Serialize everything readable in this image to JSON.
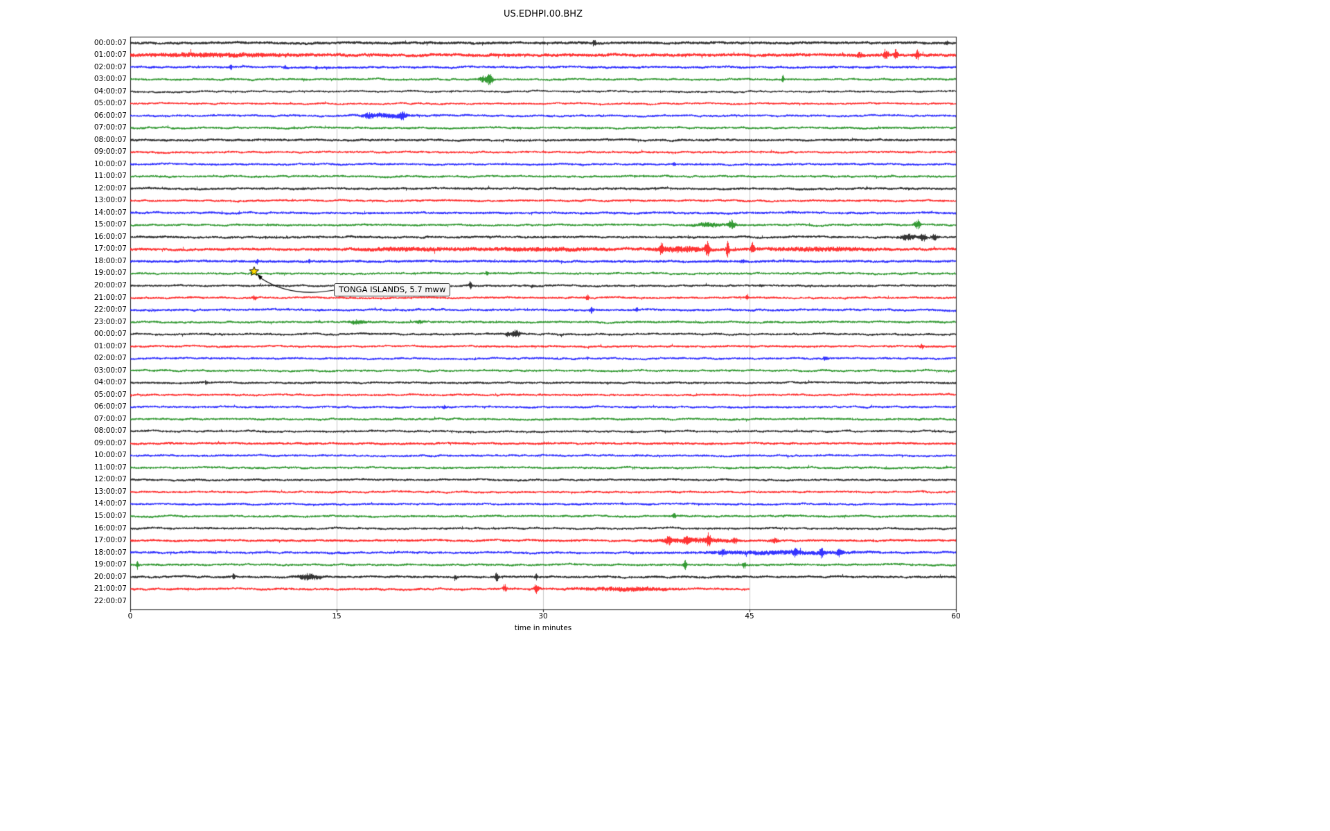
{
  "figure": {
    "title": "US.EDHPI.00.BHZ",
    "xlabel": "time in minutes"
  },
  "annotation": {
    "text": "TONGA ISLANDS, 5.7 mww"
  },
  "chart_data": {
    "type": "line",
    "subtype": "helicorder-dayplot",
    "title": "US.EDHPI.00.BHZ",
    "xlabel": "time in minutes",
    "x_ticks": [
      0,
      15,
      30,
      45,
      60
    ],
    "grid_x": [
      15,
      30,
      45
    ],
    "x_max": 60,
    "minutes_per_line": 60,
    "color_cycle": [
      "#000000",
      "#ff0000",
      "#0000ff",
      "#008000"
    ],
    "grid_color": "#c8c8c8",
    "annotation": {
      "text": "TONGA ISLANDS, 5.7 mww",
      "row": 19,
      "t_minutes": 9.0,
      "marker": "star",
      "marker_color": "#ffdd00",
      "marker_edge": "#000000"
    },
    "events_format": "[minute, amplitude_px, width_minutes]",
    "rows": [
      {
        "label": "00:00:07",
        "noise": 1.3,
        "events": [
          [
            33.7,
            6,
            0.12
          ],
          [
            59.3,
            3,
            0.12
          ]
        ]
      },
      {
        "label": "01:00:07",
        "noise": 1.5,
        "events": [
          [
            6,
            1.5,
            8
          ],
          [
            53.0,
            3,
            0.3
          ],
          [
            54.9,
            8,
            0.25
          ],
          [
            55.6,
            9,
            0.2
          ],
          [
            57.2,
            6,
            0.25
          ]
        ]
      },
      {
        "label": "02:00:07",
        "noise": 1.1,
        "events": [
          [
            7.3,
            3,
            0.15
          ],
          [
            11.2,
            3,
            0.15
          ],
          [
            13.5,
            2,
            0.12
          ]
        ]
      },
      {
        "label": "03:00:07",
        "events": [
          [
            25.6,
            4,
            0.4
          ],
          [
            26.1,
            8,
            0.35
          ],
          [
            47.4,
            6,
            0.12
          ]
        ]
      },
      {
        "label": "04:00:07",
        "noise": 0.9,
        "events": []
      },
      {
        "label": "05:00:07",
        "noise": 0.9,
        "events": []
      },
      {
        "label": "06:00:07",
        "events": [
          [
            18.5,
            2.5,
            2.5
          ],
          [
            17.3,
            3,
            0.4
          ],
          [
            19.8,
            5,
            0.35
          ]
        ]
      },
      {
        "label": "07:00:07",
        "events": []
      },
      {
        "label": "08:00:07",
        "noise": 1.1,
        "events": []
      },
      {
        "label": "09:00:07",
        "events": []
      },
      {
        "label": "10:00:07",
        "events": [
          [
            39.5,
            2,
            0.2
          ]
        ]
      },
      {
        "label": "11:00:07",
        "events": []
      },
      {
        "label": "12:00:07",
        "noise": 1.1,
        "events": []
      },
      {
        "label": "13:00:07",
        "events": []
      },
      {
        "label": "14:00:07",
        "noise": 1.1,
        "events": []
      },
      {
        "label": "15:00:07",
        "events": [
          [
            42.0,
            2.5,
            1.5
          ],
          [
            43.7,
            6,
            0.4
          ],
          [
            57.2,
            6,
            0.35
          ]
        ]
      },
      {
        "label": "16:00:07",
        "noise": 1.1,
        "events": [
          [
            56.5,
            4,
            0.8
          ],
          [
            57.6,
            5,
            0.4
          ],
          [
            58.4,
            4,
            0.35
          ]
        ]
      },
      {
        "label": "17:00:07",
        "noise": 1.3,
        "events": [
          [
            20,
            1.5,
            6
          ],
          [
            30,
            1.5,
            8
          ],
          [
            38.6,
            9,
            0.2
          ],
          [
            40.0,
            3,
            3
          ],
          [
            41.9,
            13,
            0.22
          ],
          [
            43.4,
            11,
            0.2
          ],
          [
            45.2,
            8,
            0.2
          ],
          [
            50,
            2,
            6
          ]
        ]
      },
      {
        "label": "18:00:07",
        "noise": 1.2,
        "events": [
          [
            9.2,
            3,
            0.15
          ],
          [
            13.0,
            2,
            0.15
          ],
          [
            44.5,
            2,
            0.3
          ]
        ]
      },
      {
        "label": "19:00:07",
        "events": [
          [
            25.9,
            4,
            0.15
          ]
        ]
      },
      {
        "label": "20:00:07",
        "events": [
          [
            24.7,
            5,
            0.15
          ],
          [
            29.2,
            3,
            0.12
          ],
          [
            45.8,
            2,
            0.12
          ]
        ]
      },
      {
        "label": "21:00:07",
        "events": [
          [
            9.0,
            3,
            0.2
          ],
          [
            33.2,
            5,
            0.15
          ],
          [
            44.8,
            5,
            0.15
          ]
        ]
      },
      {
        "label": "22:00:07",
        "noise": 1.1,
        "events": [
          [
            33.5,
            4,
            0.2
          ],
          [
            36.8,
            3,
            0.15
          ]
        ]
      },
      {
        "label": "23:00:07",
        "events": [
          [
            16.5,
            2.5,
            0.8
          ],
          [
            21.0,
            2,
            0.4
          ]
        ]
      },
      {
        "label": "00:00:07",
        "events": [
          [
            27.4,
            3,
            0.3
          ],
          [
            28.0,
            6,
            0.45
          ]
        ]
      },
      {
        "label": "01:00:07",
        "events": [
          [
            57.5,
            3,
            0.2
          ]
        ]
      },
      {
        "label": "02:00:07",
        "events": [
          [
            50.5,
            2,
            0.3
          ]
        ]
      },
      {
        "label": "03:00:07",
        "events": []
      },
      {
        "label": "04:00:07",
        "events": [
          [
            5.5,
            3,
            0.12
          ]
        ]
      },
      {
        "label": "05:00:07",
        "events": []
      },
      {
        "label": "06:00:07",
        "events": [
          [
            22.8,
            2,
            0.2
          ]
        ]
      },
      {
        "label": "07:00:07",
        "events": []
      },
      {
        "label": "08:00:07",
        "events": []
      },
      {
        "label": "09:00:07",
        "noise": 1.1,
        "events": []
      },
      {
        "label": "10:00:07",
        "events": []
      },
      {
        "label": "11:00:07",
        "events": []
      },
      {
        "label": "12:00:07",
        "events": []
      },
      {
        "label": "13:00:07",
        "events": []
      },
      {
        "label": "14:00:07",
        "events": []
      },
      {
        "label": "15:00:07",
        "events": [
          [
            39.5,
            4,
            0.2
          ]
        ]
      },
      {
        "label": "16:00:07",
        "events": []
      },
      {
        "label": "17:00:07",
        "noise": 1.1,
        "events": [
          [
            39.1,
            5,
            0.3
          ],
          [
            40.4,
            5,
            0.3
          ],
          [
            41.0,
            2.5,
            4
          ],
          [
            42.0,
            9,
            0.22
          ],
          [
            43.9,
            4,
            0.3
          ],
          [
            46.8,
            3,
            0.4
          ]
        ]
      },
      {
        "label": "18:00:07",
        "noise": 1.1,
        "events": [
          [
            43.0,
            4,
            0.3
          ],
          [
            47,
            2,
            8
          ],
          [
            48.3,
            4,
            0.3
          ],
          [
            50.2,
            6,
            0.25
          ],
          [
            51.5,
            4,
            0.3
          ]
        ]
      },
      {
        "label": "19:00:07",
        "events": [
          [
            0.5,
            5,
            0.15
          ],
          [
            40.3,
            6,
            0.2
          ],
          [
            44.6,
            5,
            0.2
          ]
        ]
      },
      {
        "label": "20:00:07",
        "noise": 1.1,
        "events": [
          [
            7.5,
            5,
            0.15
          ],
          [
            13.0,
            4,
            1.2
          ],
          [
            23.6,
            5,
            0.15
          ],
          [
            26.6,
            6,
            0.2
          ],
          [
            29.5,
            4,
            0.15
          ]
        ]
      },
      {
        "label": "21:00:07",
        "noise": 1.1,
        "end_min": 45,
        "events": [
          [
            27.2,
            5,
            0.2
          ],
          [
            29.5,
            7,
            0.3
          ],
          [
            36,
            2,
            5
          ]
        ]
      },
      {
        "label": "22:00:07",
        "empty": true,
        "events": []
      }
    ]
  }
}
